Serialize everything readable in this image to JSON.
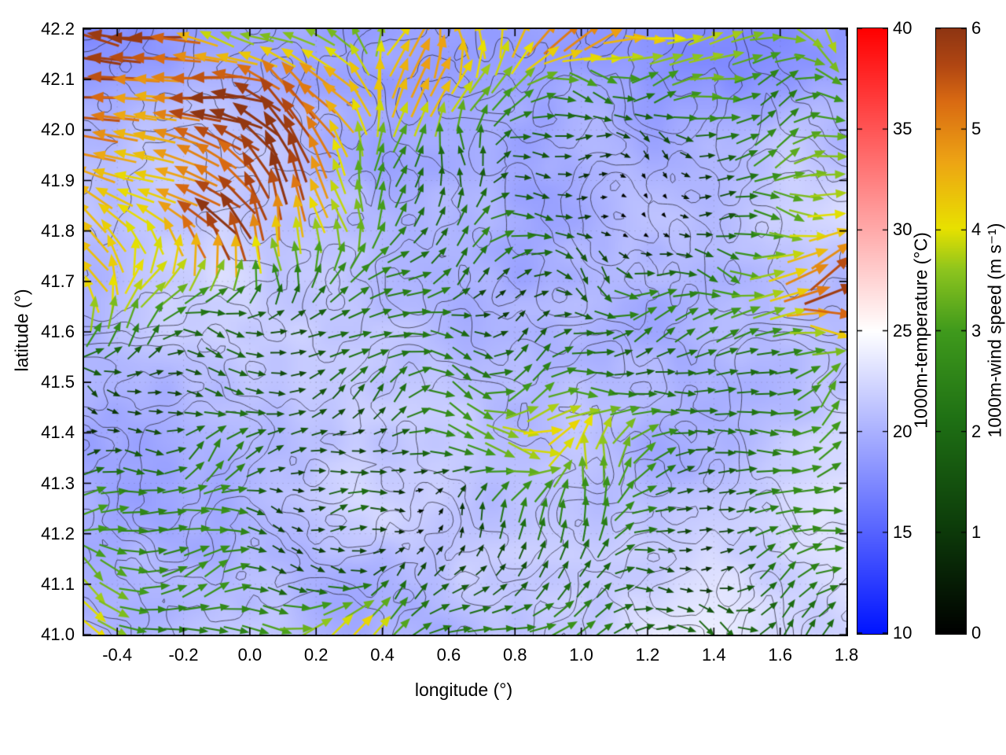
{
  "chart_data": {
    "type": "heatmap+contour+quiver",
    "title": "",
    "xlabel": "longitude (°)",
    "ylabel": "latitude (°)",
    "xlim": [
      -0.5,
      1.8
    ],
    "ylim": [
      41.0,
      42.2
    ],
    "x_ticks": [
      -0.4,
      -0.2,
      0.0,
      0.2,
      0.4,
      0.6,
      0.8,
      1.0,
      1.2,
      1.4,
      1.6,
      1.8
    ],
    "x_tick_labels": [
      "-0.4",
      "-0.2",
      "0.0",
      "0.2",
      "0.4",
      "0.6",
      "0.8",
      "1.0",
      "1.2",
      "1.4",
      "1.6",
      "1.8"
    ],
    "y_ticks": [
      41.0,
      41.1,
      41.2,
      41.3,
      41.4,
      41.5,
      41.6,
      41.7,
      41.8,
      41.9,
      42.0,
      42.1,
      42.2
    ],
    "y_tick_labels": [
      "41.0",
      "41.1",
      "41.2",
      "41.3",
      "41.4",
      "41.5",
      "41.6",
      "41.7",
      "41.8",
      "41.9",
      "42.0",
      "42.1",
      "42.2"
    ],
    "grid": true,
    "colorbars": [
      {
        "id": "temperature",
        "label": "1000m-temperature (°C)",
        "range": [
          10,
          40
        ],
        "ticks": [
          "10",
          "15",
          "20",
          "25",
          "30",
          "35",
          "40"
        ],
        "stops": [
          [
            0.0,
            "#0014ff"
          ],
          [
            0.5,
            "#ffffff"
          ],
          [
            1.0,
            "#ff0000"
          ]
        ]
      },
      {
        "id": "wind-speed",
        "label": "1000m-wind speed (m s⁻¹)",
        "range": [
          0,
          6
        ],
        "ticks": [
          "0",
          "1",
          "2",
          "3",
          "4",
          "5",
          "6"
        ],
        "stops": [
          [
            0.0,
            "#000000"
          ],
          [
            0.18,
            "#0d3d0a"
          ],
          [
            0.35,
            "#1e6f14"
          ],
          [
            0.5,
            "#3f9a1c"
          ],
          [
            0.6,
            "#8cc41e"
          ],
          [
            0.67,
            "#e8e100"
          ],
          [
            0.78,
            "#eda414"
          ],
          [
            0.88,
            "#d96a12"
          ],
          [
            0.94,
            "#b04612"
          ],
          [
            1.0,
            "#8e3512"
          ]
        ]
      }
    ],
    "field_summary": {
      "temperature_on_map_c": [
        16,
        24
      ],
      "temperature_notes": "Background mostly 19–23 °C (light periwinkle blue to near-white); cooler 16–18 °C darker blue bands along the top edge, lightest near-white patches toward the bottom right. Thin dark terrain-like contour lines overlay the whole map.",
      "wind_notes": "Dense grid of wind arrows colored by speed: strong 5–6 m/s dark-red/brick arrows pointing west-northwest fill the northwest quadrant; widespread 3–4 m/s yellow east-pointing arrows over the south and east; weak 0–2 m/s dark-green arrows clustered in the center-east (near lon 1.2–1.4, lat 41.8–41.9), south-center (lon 0.4–0.6, lat 41.0–41.3) and west-center; 5 m/s orange streaks near the east edge around lat 41.5."
    },
    "wind_coarse_grid": {
      "lon": [
        -0.4,
        -0.2,
        0.0,
        0.2,
        0.4,
        0.6,
        0.8,
        1.0,
        1.2,
        1.4,
        1.6,
        1.8
      ],
      "lat": [
        42.1,
        41.9,
        41.7,
        41.5,
        41.3,
        41.1
      ],
      "speed_ms": [
        [
          6,
          6,
          6,
          5,
          4,
          3,
          3,
          4,
          4,
          3,
          4,
          4
        ],
        [
          6,
          6,
          5,
          5,
          3,
          3,
          3,
          2,
          1,
          2,
          3,
          4
        ],
        [
          4,
          5,
          5,
          4,
          4,
          3,
          2,
          2,
          2,
          3,
          4,
          4
        ],
        [
          3,
          4,
          4,
          4,
          3,
          3,
          3,
          3,
          4,
          5,
          5,
          4
        ],
        [
          4,
          3,
          3,
          2,
          2,
          2,
          3,
          4,
          3,
          2,
          3,
          4
        ],
        [
          4,
          4,
          3,
          2,
          1,
          2,
          2,
          3,
          3,
          3,
          4,
          4
        ]
      ],
      "dir": [
        [
          "WNW",
          "WNW",
          "WNW",
          "WNW",
          "NW",
          "W",
          "NE",
          "E",
          "E",
          "E",
          "E",
          "E"
        ],
        [
          "WNW",
          "WNW",
          "WNW",
          "NW",
          "N",
          "NE",
          "E",
          "SE",
          "E",
          "NE",
          "E",
          "E"
        ],
        [
          "W",
          "WNW",
          "NW",
          "N",
          "NE",
          "E",
          "E",
          "NE",
          "E",
          "E",
          "E",
          "E"
        ],
        [
          "W",
          "NW",
          "N",
          "NE",
          "E",
          "E",
          "E",
          "E",
          "E",
          "E",
          "E",
          "E"
        ],
        [
          "E",
          "E",
          "NE",
          "E",
          "E",
          "NE",
          "E",
          "E",
          "E",
          "E",
          "E",
          "E"
        ],
        [
          "E",
          "E",
          "E",
          "E",
          "E",
          "E",
          "E",
          "E",
          "E",
          "E",
          "E",
          "E"
        ]
      ]
    }
  }
}
